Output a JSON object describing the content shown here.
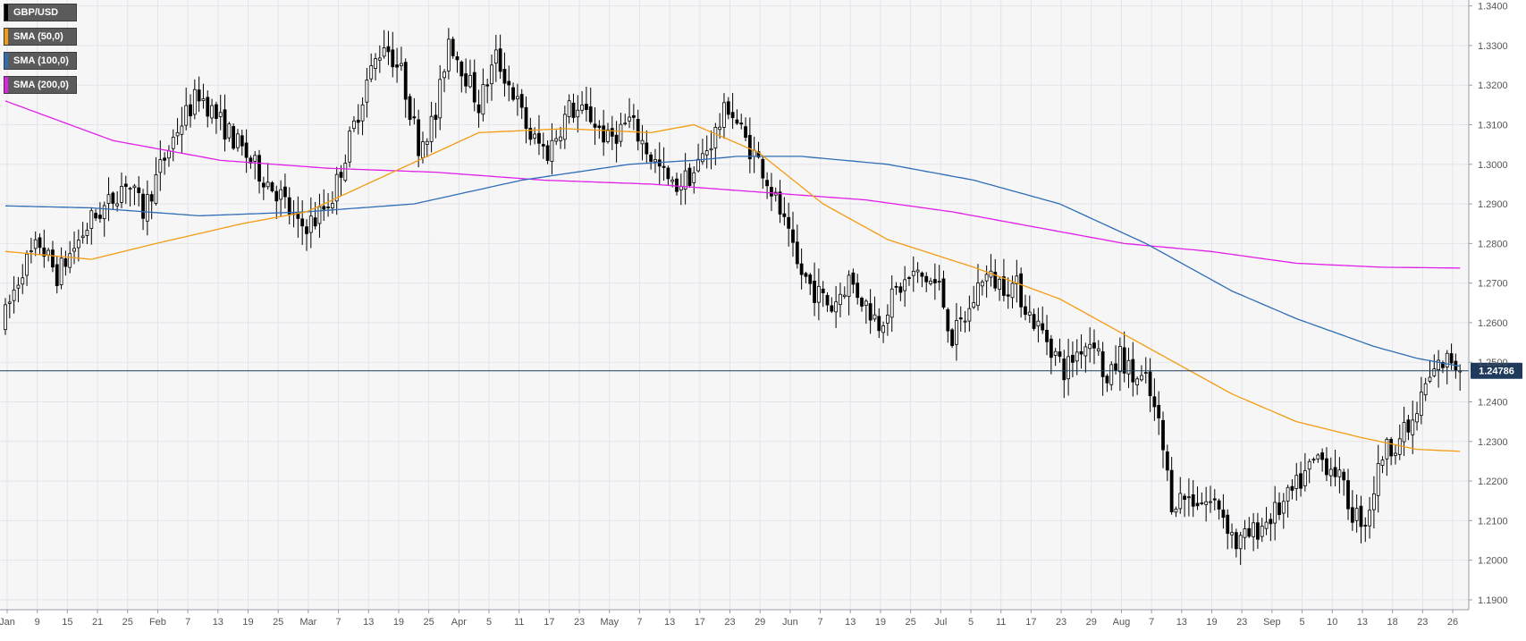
{
  "chart_data": {
    "type": "candlestick",
    "title": "",
    "instrument": "GBP/USD",
    "ylim": [
      1.1875,
      1.3415
    ],
    "y_ticks": [
      "1.3400",
      "1.3300",
      "1.3200",
      "1.3100",
      "1.3000",
      "1.2900",
      "1.2800",
      "1.2700",
      "1.2600",
      "1.2500",
      "1.2400",
      "1.2300",
      "1.2200",
      "1.2100",
      "1.2000",
      "1.1900"
    ],
    "x_ticks": [
      "Jan",
      "9",
      "15",
      "21",
      "25",
      "Feb",
      "7",
      "13",
      "19",
      "25",
      "Mar",
      "7",
      "13",
      "19",
      "25",
      "Apr",
      "5",
      "11",
      "17",
      "23",
      "May",
      "7",
      "13",
      "17",
      "23",
      "29",
      "Jun",
      "7",
      "13",
      "19",
      "25",
      "Jul",
      "5",
      "11",
      "17",
      "23",
      "29",
      "Aug",
      "7",
      "13",
      "19",
      "23",
      "Sep",
      "5",
      "10",
      "13",
      "18",
      "23",
      "26"
    ],
    "last_price": "1.24786",
    "legend": [
      {
        "label": "GBP/USD",
        "color": "#000000"
      },
      {
        "label": "SMA (50,0)",
        "color": "#f39c12"
      },
      {
        "label": "SMA (100,0)",
        "color": "#2f6db5"
      },
      {
        "label": "SMA (200,0)",
        "color": "#e020e8"
      }
    ],
    "close_path": [
      [
        0,
        1.262
      ],
      [
        4,
        1.274
      ],
      [
        8,
        1.28
      ],
      [
        12,
        1.272
      ],
      [
        16,
        1.279
      ],
      [
        20,
        1.286
      ],
      [
        24,
        1.29
      ],
      [
        28,
        1.296
      ],
      [
        32,
        1.288
      ],
      [
        36,
        1.299
      ],
      [
        40,
        1.309
      ],
      [
        45,
        1.318
      ],
      [
        49,
        1.312
      ],
      [
        54,
        1.305
      ],
      [
        59,
        1.298
      ],
      [
        64,
        1.292
      ],
      [
        68,
        1.284
      ],
      [
        72,
        1.286
      ],
      [
        76,
        1.292
      ],
      [
        80,
        1.306
      ],
      [
        84,
        1.321
      ],
      [
        88,
        1.331
      ],
      [
        92,
        1.323
      ],
      [
        96,
        1.305
      ],
      [
        100,
        1.312
      ],
      [
        103,
        1.332
      ],
      [
        106,
        1.325
      ],
      [
        110,
        1.315
      ],
      [
        114,
        1.327
      ],
      [
        118,
        1.318
      ],
      [
        122,
        1.307
      ],
      [
        126,
        1.303
      ],
      [
        131,
        1.314
      ],
      [
        136,
        1.312
      ],
      [
        140,
        1.306
      ],
      [
        145,
        1.311
      ],
      [
        150,
        1.302
      ],
      [
        155,
        1.294
      ],
      [
        160,
        1.298
      ],
      [
        165,
        1.308
      ],
      [
        168,
        1.315
      ],
      [
        172,
        1.306
      ],
      [
        176,
        1.299
      ],
      [
        180,
        1.288
      ],
      [
        184,
        1.274
      ],
      [
        188,
        1.268
      ],
      [
        192,
        1.264
      ],
      [
        196,
        1.271
      ],
      [
        199,
        1.266
      ],
      [
        203,
        1.26
      ],
      [
        207,
        1.268
      ],
      [
        211,
        1.272
      ],
      [
        214,
        1.271
      ],
      [
        217,
        1.269
      ],
      [
        220,
        1.256
      ],
      [
        224,
        1.263
      ],
      [
        227,
        1.272
      ],
      [
        231,
        1.27
      ],
      [
        235,
        1.269
      ],
      [
        238,
        1.262
      ],
      [
        242,
        1.256
      ],
      [
        246,
        1.248
      ],
      [
        250,
        1.254
      ],
      [
        253,
        1.256
      ],
      [
        256,
        1.244
      ],
      [
        259,
        1.252
      ],
      [
        262,
        1.246
      ],
      [
        265,
        1.245
      ],
      [
        268,
        1.234
      ],
      [
        271,
        1.215
      ],
      [
        274,
        1.216
      ],
      [
        278,
        1.215
      ],
      [
        282,
        1.214
      ],
      [
        286,
        1.204
      ],
      [
        290,
        1.207
      ],
      [
        293,
        1.21
      ],
      [
        297,
        1.214
      ],
      [
        301,
        1.22
      ],
      [
        305,
        1.226
      ],
      [
        309,
        1.223
      ],
      [
        313,
        1.212
      ],
      [
        316,
        1.21
      ],
      [
        318,
        1.218
      ],
      [
        320,
        1.227
      ],
      [
        323,
        1.23
      ],
      [
        327,
        1.234
      ],
      [
        330,
        1.244
      ],
      [
        333,
        1.249
      ],
      [
        336,
        1.251
      ],
      [
        338,
        1.2478
      ]
    ],
    "sma_50": [
      [
        0,
        1.278
      ],
      [
        20,
        1.276
      ],
      [
        35,
        1.28
      ],
      [
        55,
        1.285
      ],
      [
        70,
        1.288
      ],
      [
        90,
        1.298
      ],
      [
        110,
        1.308
      ],
      [
        130,
        1.309
      ],
      [
        150,
        1.308
      ],
      [
        160,
        1.31
      ],
      [
        175,
        1.303
      ],
      [
        190,
        1.29
      ],
      [
        205,
        1.281
      ],
      [
        225,
        1.274
      ],
      [
        245,
        1.266
      ],
      [
        265,
        1.254
      ],
      [
        285,
        1.242
      ],
      [
        300,
        1.235
      ],
      [
        315,
        1.231
      ],
      [
        328,
        1.228
      ],
      [
        338,
        1.2275
      ]
    ],
    "sma_100": [
      [
        0,
        1.2895
      ],
      [
        20,
        1.289
      ],
      [
        45,
        1.287
      ],
      [
        70,
        1.288
      ],
      [
        95,
        1.29
      ],
      [
        120,
        1.296
      ],
      [
        145,
        1.3
      ],
      [
        160,
        1.301
      ],
      [
        170,
        1.302
      ],
      [
        185,
        1.302
      ],
      [
        205,
        1.3
      ],
      [
        225,
        1.296
      ],
      [
        245,
        1.29
      ],
      [
        265,
        1.28
      ],
      [
        285,
        1.268
      ],
      [
        300,
        1.261
      ],
      [
        318,
        1.254
      ],
      [
        328,
        1.251
      ],
      [
        338,
        1.249
      ]
    ],
    "sma_200": [
      [
        0,
        1.316
      ],
      [
        25,
        1.306
      ],
      [
        50,
        1.301
      ],
      [
        75,
        1.299
      ],
      [
        100,
        1.298
      ],
      [
        125,
        1.296
      ],
      [
        150,
        1.295
      ],
      [
        175,
        1.293
      ],
      [
        200,
        1.291
      ],
      [
        220,
        1.288
      ],
      [
        240,
        1.284
      ],
      [
        260,
        1.28
      ],
      [
        280,
        1.278
      ],
      [
        300,
        1.275
      ],
      [
        320,
        1.274
      ],
      [
        338,
        1.2738
      ]
    ],
    "colors": {
      "up": "#ffffff",
      "down": "#000000",
      "wick": "#000000",
      "grid": "#e3e3ec",
      "plot_bg": "#f6f6f6",
      "axis_text": "#555555",
      "last_line": "#1f3a5c",
      "last_tag_bg": "#1f3a5c",
      "last_tag_text": "#ffffff"
    }
  }
}
